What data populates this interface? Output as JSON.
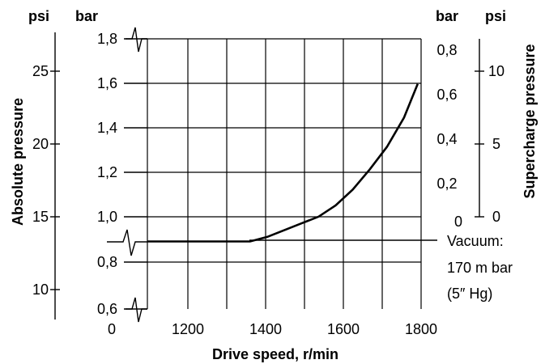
{
  "chart_data": {
    "type": "line",
    "title": "",
    "xlabel": "Drive speed, r/min",
    "x_ticks": [
      "0",
      "1200",
      "1400",
      "1600",
      "1800"
    ],
    "xlim": [
      1000,
      1800
    ],
    "ylabel_left": "Absolute pressure",
    "left_inner_unit": "bar",
    "left_inner_ticks": [
      "1,8",
      "1,6",
      "1,4",
      "1,2",
      "1,0",
      "0,8",
      "0,6"
    ],
    "ylim_bar": [
      0.6,
      1.8
    ],
    "left_outer_unit": "psi",
    "left_outer_ticks": [
      "25",
      "20",
      "15",
      "10"
    ],
    "ylabel_right": "Supercharge pressure",
    "right_inner_unit": "bar",
    "right_inner_ticks": [
      "0,8",
      "0,6",
      "0,4",
      "0,2",
      "0"
    ],
    "right_outer_unit": "psi",
    "right_outer_ticks": [
      "10",
      "5",
      "0"
    ],
    "grid": true,
    "series": [
      {
        "x": [
          1000,
          1050,
          1100,
          1150,
          1200,
          1250,
          1300,
          1350,
          1400,
          1450,
          1500,
          1550,
          1600,
          1650,
          1700,
          1750,
          1790
        ],
        "y": [
          0.9,
          0.9,
          0.9,
          0.9,
          0.9,
          0.9,
          0.9,
          0.92,
          0.95,
          0.98,
          1.01,
          1.06,
          1.13,
          1.22,
          1.32,
          1.45,
          1.6
        ]
      }
    ],
    "annotation": {
      "lines": [
        "Vacuum:",
        "170 m bar",
        "(5″ Hg)"
      ]
    }
  }
}
